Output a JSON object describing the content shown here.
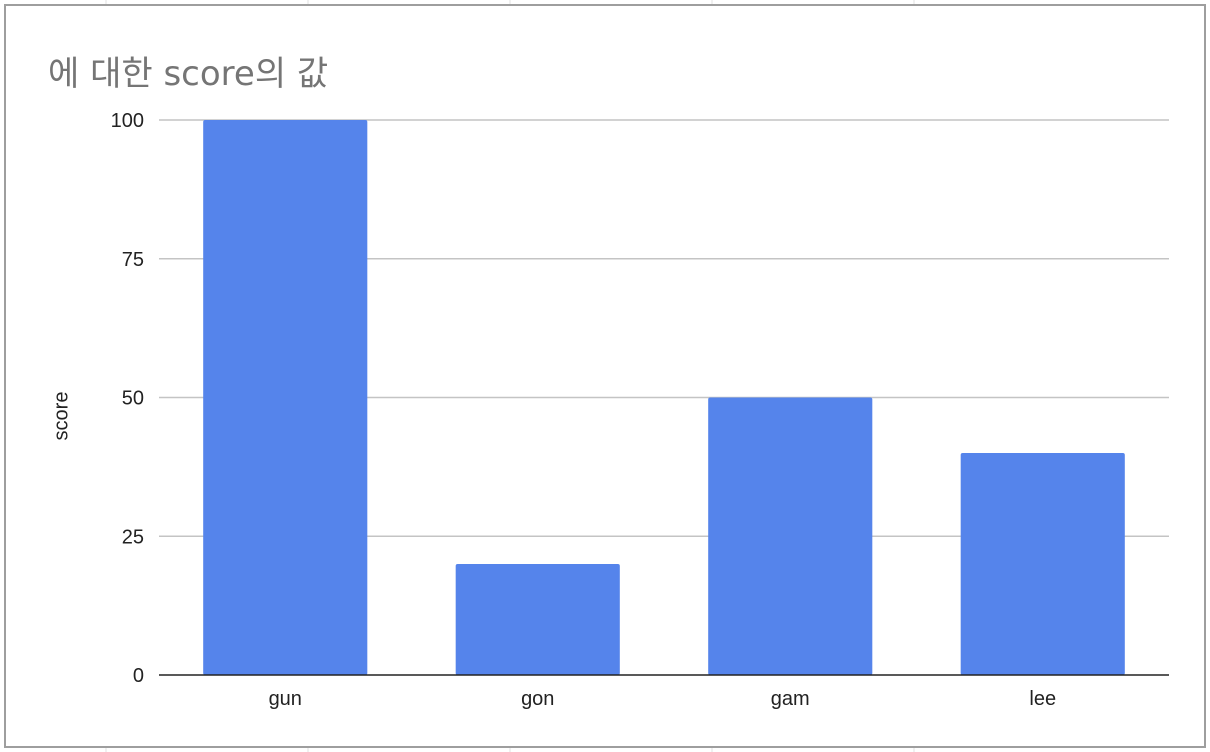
{
  "chart_data": {
    "type": "bar",
    "title": "에 대한 score의 값",
    "xlabel": "",
    "ylabel": "score",
    "categories": [
      "gun",
      "gon",
      "gam",
      "lee"
    ],
    "series": [
      {
        "values": [
          100,
          20,
          50,
          40
        ]
      }
    ],
    "ylim": [
      0,
      100
    ],
    "yticks": [
      "0",
      "25",
      "50",
      "75",
      "100"
    ],
    "grid": true,
    "legend": "none",
    "bar_color": "#5584EB",
    "grid_color": "#C4C4C4",
    "axis_color": "#222222"
  }
}
